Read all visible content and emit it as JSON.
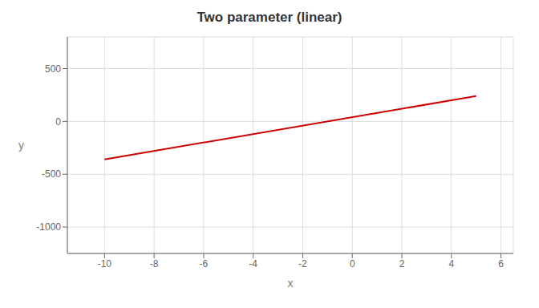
{
  "chart_data": {
    "type": "line",
    "title": "Two parameter (linear)",
    "xlabel": "x",
    "ylabel": "y",
    "x": [
      -10,
      5
    ],
    "values": [
      -360,
      240
    ],
    "color": "#cc0000",
    "xlim": [
      -11.5,
      6.5
    ],
    "xticks": [
      -10,
      -8,
      -6,
      -4,
      -2,
      0,
      2,
      4,
      6
    ],
    "ylim": [
      -1250,
      800
    ],
    "yticks": [
      -1000,
      -500,
      0,
      500
    ],
    "grid": true
  }
}
